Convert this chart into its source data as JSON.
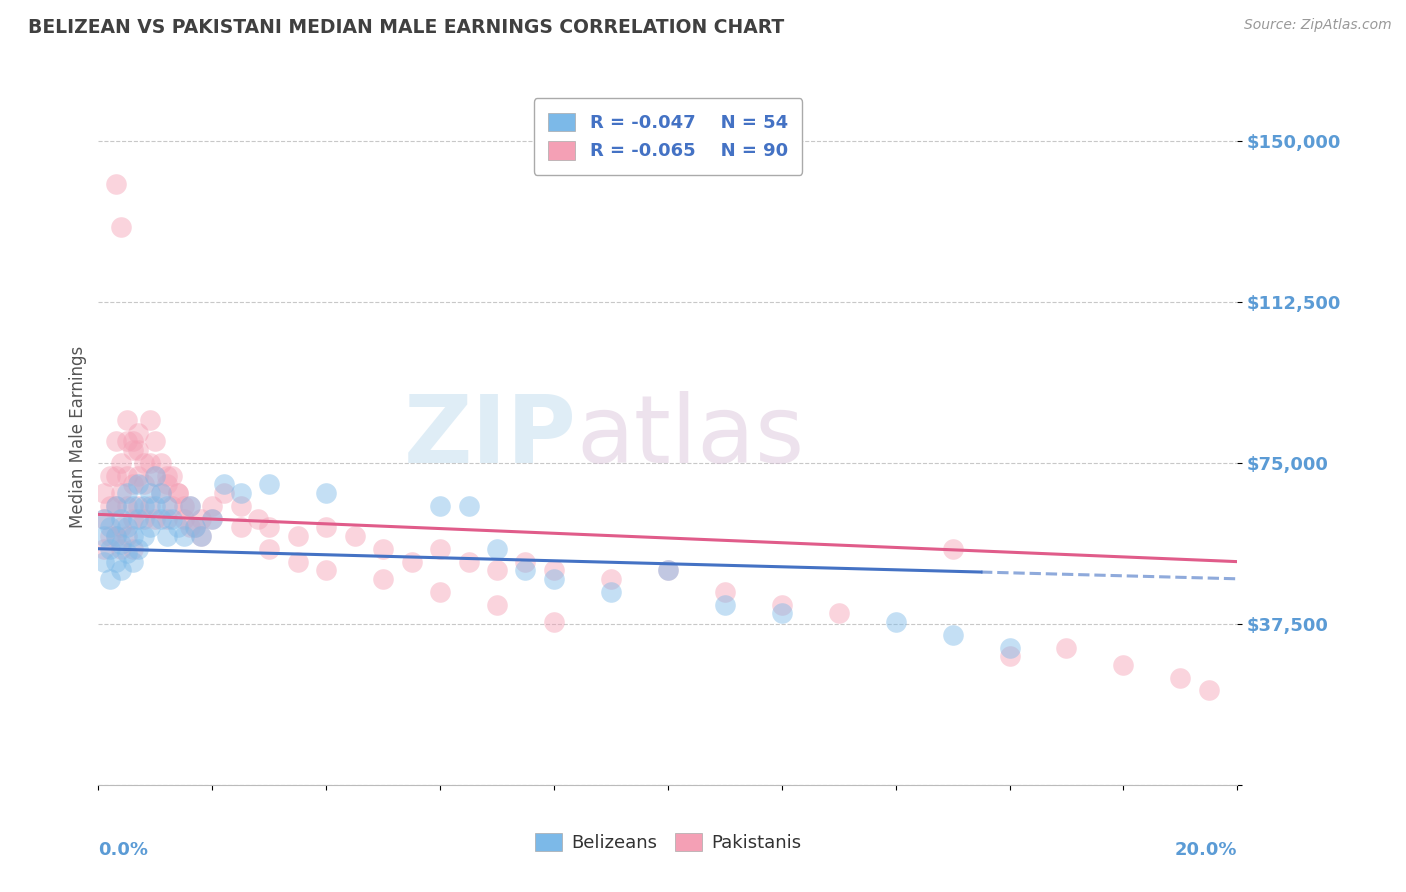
{
  "title": "BELIZEAN VS PAKISTANI MEDIAN MALE EARNINGS CORRELATION CHART",
  "source": "Source: ZipAtlas.com",
  "ylabel": "Median Male Earnings",
  "yticks": [
    0,
    37500,
    75000,
    112500,
    150000
  ],
  "ytick_labels": [
    "",
    "$37,500",
    "$75,000",
    "$112,500",
    "$150,000"
  ],
  "xlim": [
    0.0,
    0.2
  ],
  "ylim": [
    0,
    162000
  ],
  "watermark_zip": "ZIP",
  "watermark_atlas": "atlas",
  "legend_bel_r": "R = -0.047",
  "legend_bel_n": "N = 54",
  "legend_pak_r": "R = -0.065",
  "legend_pak_n": "N = 90",
  "belizean_color": "#7cb9e8",
  "pakistani_color": "#f4a0b5",
  "belizean_line_color": "#4472c4",
  "pakistani_line_color": "#e05c8a",
  "legend_text_color": "#4472c4",
  "title_color": "#404040",
  "axis_label_color": "#5b9bd5",
  "ylabel_color": "#555555",
  "grid_color": "#c8c8c8",
  "background_color": "#ffffff",
  "belizean_x": [
    0.001,
    0.001,
    0.001,
    0.002,
    0.002,
    0.002,
    0.003,
    0.003,
    0.003,
    0.004,
    0.004,
    0.004,
    0.005,
    0.005,
    0.005,
    0.006,
    0.006,
    0.006,
    0.007,
    0.007,
    0.007,
    0.008,
    0.008,
    0.009,
    0.009,
    0.01,
    0.01,
    0.011,
    0.011,
    0.012,
    0.012,
    0.013,
    0.014,
    0.015,
    0.016,
    0.017,
    0.018,
    0.02,
    0.022,
    0.025,
    0.03,
    0.04,
    0.06,
    0.065,
    0.07,
    0.075,
    0.08,
    0.09,
    0.1,
    0.11,
    0.12,
    0.14,
    0.15,
    0.16
  ],
  "belizean_y": [
    62000,
    58000,
    52000,
    60000,
    55000,
    48000,
    65000,
    58000,
    52000,
    62000,
    56000,
    50000,
    68000,
    60000,
    54000,
    65000,
    58000,
    52000,
    70000,
    62000,
    55000,
    65000,
    58000,
    68000,
    60000,
    72000,
    65000,
    68000,
    62000,
    65000,
    58000,
    62000,
    60000,
    58000,
    65000,
    60000,
    58000,
    62000,
    70000,
    68000,
    70000,
    68000,
    65000,
    65000,
    55000,
    50000,
    48000,
    45000,
    50000,
    42000,
    40000,
    38000,
    35000,
    32000
  ],
  "pakistani_x": [
    0.001,
    0.001,
    0.001,
    0.002,
    0.002,
    0.002,
    0.003,
    0.003,
    0.003,
    0.003,
    0.004,
    0.004,
    0.004,
    0.004,
    0.005,
    0.005,
    0.005,
    0.005,
    0.006,
    0.006,
    0.006,
    0.006,
    0.007,
    0.007,
    0.007,
    0.008,
    0.008,
    0.009,
    0.009,
    0.01,
    0.01,
    0.011,
    0.012,
    0.012,
    0.013,
    0.014,
    0.015,
    0.016,
    0.017,
    0.018,
    0.02,
    0.022,
    0.025,
    0.028,
    0.03,
    0.035,
    0.04,
    0.045,
    0.05,
    0.055,
    0.06,
    0.065,
    0.07,
    0.075,
    0.08,
    0.09,
    0.1,
    0.11,
    0.12,
    0.13,
    0.003,
    0.004,
    0.005,
    0.006,
    0.007,
    0.008,
    0.009,
    0.01,
    0.011,
    0.012,
    0.013,
    0.014,
    0.015,
    0.016,
    0.018,
    0.02,
    0.025,
    0.03,
    0.035,
    0.04,
    0.05,
    0.06,
    0.07,
    0.08,
    0.15,
    0.16,
    0.17,
    0.18,
    0.19,
    0.195
  ],
  "pakistani_y": [
    68000,
    62000,
    55000,
    72000,
    65000,
    58000,
    80000,
    72000,
    65000,
    58000,
    75000,
    68000,
    60000,
    55000,
    80000,
    72000,
    65000,
    58000,
    78000,
    70000,
    62000,
    55000,
    82000,
    72000,
    65000,
    70000,
    62000,
    75000,
    65000,
    72000,
    62000,
    68000,
    72000,
    62000,
    65000,
    68000,
    62000,
    65000,
    60000,
    62000,
    65000,
    68000,
    65000,
    62000,
    60000,
    58000,
    60000,
    58000,
    55000,
    52000,
    55000,
    52000,
    50000,
    52000,
    50000,
    48000,
    50000,
    45000,
    42000,
    40000,
    140000,
    130000,
    85000,
    80000,
    78000,
    75000,
    85000,
    80000,
    75000,
    70000,
    72000,
    68000,
    65000,
    60000,
    58000,
    62000,
    60000,
    55000,
    52000,
    50000,
    48000,
    45000,
    42000,
    38000,
    55000,
    30000,
    32000,
    28000,
    25000,
    22000
  ]
}
